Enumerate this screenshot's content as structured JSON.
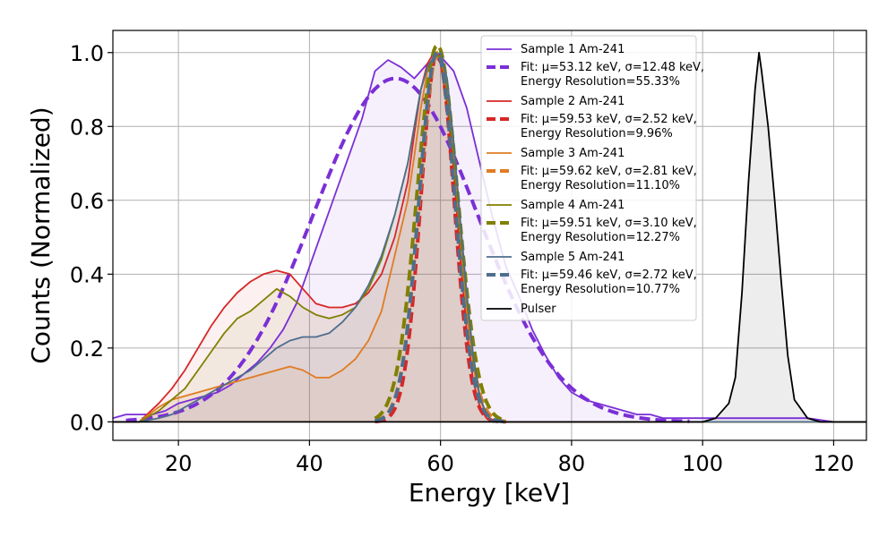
{
  "chart_data": {
    "type": "line",
    "title": "",
    "xlabel": "Energy [keV]",
    "ylabel": "Counts (Normalized)",
    "xlim": [
      10,
      125
    ],
    "ylim": [
      -0.05,
      1.06
    ],
    "xticks": [
      20,
      40,
      60,
      80,
      100,
      120
    ],
    "yticks": [
      0.0,
      0.2,
      0.4,
      0.6,
      0.8,
      1.0
    ],
    "grid": true,
    "legend_position": "top-right",
    "series": [
      {
        "name": "Sample 1 Am-241",
        "color": "#7b2fd6",
        "style": "solid",
        "fill": true,
        "x": [
          10,
          12,
          14,
          16,
          18,
          20,
          22,
          24,
          26,
          28,
          30,
          32,
          34,
          36,
          38,
          40,
          42,
          44,
          46,
          48,
          50,
          52,
          54,
          56,
          58,
          60,
          62,
          64,
          66,
          68,
          70,
          72,
          74,
          76,
          78,
          80,
          82,
          84,
          86,
          88,
          90,
          92,
          94,
          96,
          98,
          100,
          104,
          108,
          112,
          116,
          120,
          125
        ],
        "y": [
          0.01,
          0.02,
          0.02,
          0.02,
          0.03,
          0.05,
          0.06,
          0.07,
          0.08,
          0.1,
          0.13,
          0.16,
          0.2,
          0.25,
          0.32,
          0.42,
          0.52,
          0.62,
          0.72,
          0.82,
          0.95,
          0.98,
          0.96,
          0.93,
          0.97,
          0.99,
          0.95,
          0.85,
          0.7,
          0.55,
          0.42,
          0.34,
          0.25,
          0.18,
          0.12,
          0.08,
          0.06,
          0.05,
          0.04,
          0.03,
          0.02,
          0.02,
          0.01,
          0.01,
          0.01,
          0.01,
          0.01,
          0.01,
          0.01,
          0.01,
          0.0,
          0.0
        ]
      },
      {
        "name": "Fit: μ=53.12 keV, σ=12.48 keV,\nEnergy Resolution=55.33%",
        "color": "#7b2fd6",
        "style": "dashed",
        "gauss": {
          "mu": 53.12,
          "sigma": 12.48,
          "amp": 0.93,
          "xmin": 12,
          "xmax": 98
        }
      },
      {
        "name": "Sample 2 Am-241",
        "color": "#d62728",
        "style": "solid",
        "fill": true,
        "x": [
          10,
          14,
          17,
          19,
          21,
          23,
          25,
          27,
          29,
          31,
          33,
          35,
          37,
          39,
          41,
          43,
          45,
          47,
          49,
          51,
          53,
          55,
          56,
          57,
          58,
          59,
          60,
          61,
          62,
          63,
          64,
          65,
          66,
          67,
          68,
          70,
          75,
          80,
          90,
          100,
          125
        ],
        "y": [
          0.0,
          0.0,
          0.05,
          0.09,
          0.14,
          0.2,
          0.26,
          0.31,
          0.35,
          0.38,
          0.4,
          0.41,
          0.4,
          0.36,
          0.32,
          0.31,
          0.31,
          0.32,
          0.35,
          0.4,
          0.5,
          0.65,
          0.78,
          0.9,
          0.97,
          1.0,
          0.97,
          0.86,
          0.68,
          0.45,
          0.25,
          0.11,
          0.04,
          0.01,
          0.0,
          0.0,
          0.0,
          0.0,
          0.0,
          0.0,
          0.0
        ]
      },
      {
        "name": "Fit: μ=59.53 keV, σ=2.52 keV,\nEnergy Resolution=9.96%",
        "color": "#d62728",
        "style": "dashed",
        "gauss": {
          "mu": 59.53,
          "sigma": 2.52,
          "amp": 1.0,
          "xmin": 50,
          "xmax": 70
        }
      },
      {
        "name": "Sample 3 Am-241",
        "color": "#e07b22",
        "style": "solid",
        "fill": true,
        "x": [
          10,
          14,
          17,
          19,
          21,
          23,
          25,
          27,
          29,
          31,
          33,
          35,
          37,
          39,
          41,
          43,
          45,
          47,
          49,
          51,
          53,
          55,
          56,
          57,
          58,
          59,
          60,
          61,
          62,
          63,
          64,
          65,
          66,
          67,
          68,
          70,
          75,
          80,
          90,
          100,
          125
        ],
        "y": [
          0.0,
          0.0,
          0.04,
          0.06,
          0.07,
          0.08,
          0.09,
          0.1,
          0.11,
          0.12,
          0.13,
          0.14,
          0.15,
          0.14,
          0.12,
          0.12,
          0.14,
          0.17,
          0.22,
          0.3,
          0.45,
          0.6,
          0.72,
          0.85,
          0.95,
          0.98,
          0.99,
          0.9,
          0.72,
          0.5,
          0.3,
          0.15,
          0.06,
          0.02,
          0.0,
          0.0,
          0.0,
          0.0,
          0.0,
          0.0,
          0.0
        ]
      },
      {
        "name": "Fit: μ=59.62 keV, σ=2.81 keV,\nEnergy Resolution=11.10%",
        "color": "#e07b22",
        "style": "dashed",
        "gauss": {
          "mu": 59.62,
          "sigma": 2.81,
          "amp": 1.0,
          "xmin": 50,
          "xmax": 70
        }
      },
      {
        "name": "Sample 4 Am-241",
        "color": "#808000",
        "style": "solid",
        "fill": true,
        "x": [
          10,
          14,
          17,
          19,
          21,
          23,
          25,
          27,
          29,
          31,
          33,
          35,
          37,
          39,
          41,
          43,
          45,
          47,
          49,
          51,
          53,
          55,
          56,
          57,
          58,
          59,
          60,
          61,
          62,
          63,
          64,
          65,
          66,
          67,
          68,
          70,
          75,
          80,
          90,
          100,
          125
        ],
        "y": [
          0.0,
          0.0,
          0.03,
          0.06,
          0.09,
          0.14,
          0.19,
          0.24,
          0.28,
          0.3,
          0.33,
          0.36,
          0.34,
          0.31,
          0.29,
          0.28,
          0.29,
          0.31,
          0.36,
          0.44,
          0.56,
          0.7,
          0.8,
          0.9,
          0.96,
          0.99,
          0.99,
          0.92,
          0.75,
          0.54,
          0.33,
          0.17,
          0.07,
          0.02,
          0.0,
          0.0,
          0.0,
          0.0,
          0.0,
          0.0,
          0.0
        ]
      },
      {
        "name": "Fit: μ=59.51 keV, σ=3.10 keV,\nEnergy Resolution=12.27%",
        "color": "#808000",
        "style": "dashed",
        "gauss": {
          "mu": 59.51,
          "sigma": 3.1,
          "amp": 1.02,
          "xmin": 50,
          "xmax": 70
        }
      },
      {
        "name": "Sample 5 Am-241",
        "color": "#4e6e8e",
        "style": "solid",
        "fill": true,
        "x": [
          10,
          14,
          17,
          19,
          21,
          23,
          25,
          27,
          29,
          31,
          33,
          35,
          37,
          39,
          41,
          43,
          45,
          47,
          49,
          51,
          53,
          55,
          56,
          57,
          58,
          59,
          60,
          61,
          62,
          63,
          64,
          65,
          66,
          67,
          68,
          70,
          75,
          80,
          90,
          100,
          125
        ],
        "y": [
          0.0,
          0.0,
          0.01,
          0.02,
          0.04,
          0.06,
          0.08,
          0.1,
          0.12,
          0.14,
          0.17,
          0.2,
          0.22,
          0.23,
          0.23,
          0.24,
          0.27,
          0.31,
          0.37,
          0.45,
          0.56,
          0.7,
          0.8,
          0.9,
          0.96,
          0.99,
          1.0,
          0.93,
          0.76,
          0.55,
          0.35,
          0.18,
          0.07,
          0.02,
          0.0,
          0.0,
          0.0,
          0.0,
          0.0,
          0.0,
          0.0
        ]
      },
      {
        "name": "Fit: μ=59.46 keV, σ=2.72 keV,\nEnergy Resolution=10.77%",
        "color": "#4e6e8e",
        "style": "dashed",
        "gauss": {
          "mu": 59.46,
          "sigma": 2.72,
          "amp": 1.0,
          "xmin": 50,
          "xmax": 70
        }
      },
      {
        "name": "Pulser",
        "color": "#000000",
        "style": "solid",
        "fill": true,
        "x": [
          10,
          100,
          102,
          104,
          105,
          106,
          107,
          108,
          108.6,
          109,
          110,
          111,
          112,
          113,
          114,
          116,
          118,
          125
        ],
        "y": [
          0.0,
          0.0,
          0.01,
          0.05,
          0.12,
          0.35,
          0.65,
          0.9,
          1.0,
          0.95,
          0.8,
          0.6,
          0.38,
          0.18,
          0.06,
          0.01,
          0.0,
          0.0
        ]
      }
    ]
  }
}
